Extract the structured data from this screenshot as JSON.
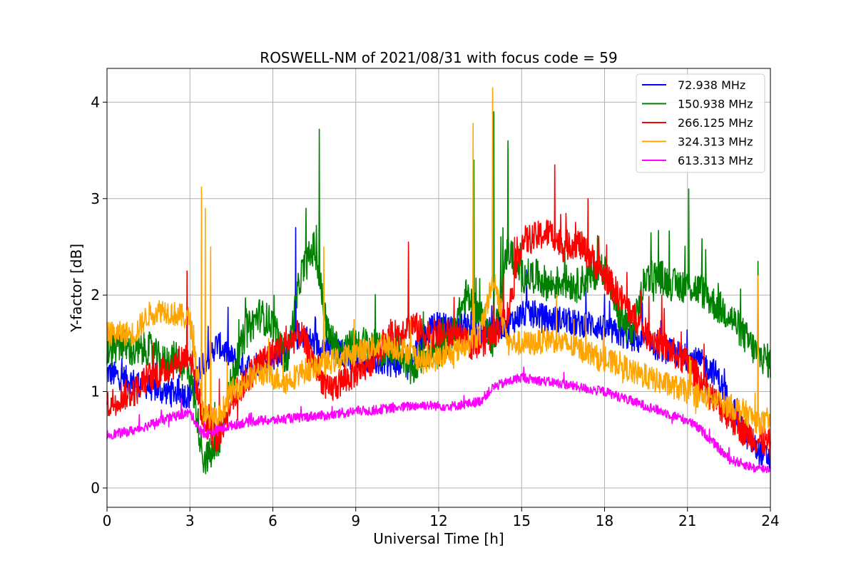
{
  "chart_data": {
    "type": "line",
    "title": "ROSWELL-NM of 2021/08/31 with focus code = 59",
    "xlabel": "Universal Time [h]",
    "ylabel": "Y-factor [dB]",
    "xlim": [
      0,
      24
    ],
    "ylim": [
      -0.2,
      4.35
    ],
    "xticks": [
      0,
      3,
      6,
      9,
      12,
      15,
      18,
      21,
      24
    ],
    "yticks": [
      0,
      1,
      2,
      3,
      4
    ],
    "grid": true,
    "legend_position": "top-right",
    "series": [
      {
        "name": " 72.938 MHz",
        "color": "#0000ff",
        "x": [
          0,
          0.5,
          1,
          1.5,
          2,
          2.5,
          3,
          3.5,
          4,
          4.5,
          5,
          5.5,
          6,
          6.5,
          7,
          7.5,
          8,
          8.5,
          9,
          9.5,
          10,
          10.5,
          11,
          11.5,
          12,
          12.5,
          13,
          13.5,
          14,
          14.5,
          15,
          15.5,
          16,
          16.5,
          17,
          17.5,
          18,
          18.5,
          19,
          19.5,
          20,
          20.5,
          21,
          21.5,
          22,
          22.5,
          23,
          23.5,
          24
        ],
        "y": [
          1.2,
          1.15,
          1.1,
          1.05,
          1.0,
          1.0,
          0.95,
          1.3,
          1.5,
          1.35,
          1.25,
          1.3,
          1.35,
          1.45,
          1.6,
          1.5,
          1.45,
          1.4,
          1.35,
          1.3,
          1.3,
          1.28,
          1.35,
          1.6,
          1.7,
          1.65,
          1.7,
          1.6,
          1.65,
          1.7,
          1.8,
          1.8,
          1.75,
          1.75,
          1.7,
          1.7,
          1.65,
          1.6,
          1.55,
          1.5,
          1.45,
          1.4,
          1.35,
          1.3,
          1.2,
          0.9,
          0.6,
          0.4,
          0.3
        ],
        "noise": 0.14
      },
      {
        "name": "150.938 MHz",
        "color": "#008000",
        "x": [
          0,
          0.5,
          1,
          1.5,
          2,
          2.5,
          3,
          3.5,
          4,
          4.5,
          5,
          5.5,
          6,
          6.5,
          7,
          7.5,
          8,
          8.5,
          9,
          9.5,
          10,
          10.5,
          11,
          11.5,
          12,
          12.5,
          13,
          13.5,
          14,
          14.5,
          15,
          15.5,
          16,
          16.5,
          17,
          17.5,
          18,
          18.5,
          19,
          19.5,
          20,
          20.5,
          21,
          21.5,
          22,
          22.5,
          23,
          23.5,
          24
        ],
        "y": [
          1.4,
          1.5,
          1.4,
          1.45,
          1.3,
          1.35,
          1.2,
          0.3,
          0.4,
          1.1,
          1.6,
          1.8,
          1.7,
          1.3,
          2.2,
          2.5,
          1.6,
          1.4,
          1.5,
          1.5,
          1.4,
          1.5,
          1.2,
          1.4,
          1.4,
          1.6,
          2.0,
          1.8,
          1.5,
          2.5,
          2.2,
          2.2,
          2.1,
          2.15,
          2.1,
          2.2,
          2.3,
          1.8,
          1.6,
          2.2,
          2.2,
          2.1,
          2.1,
          2.05,
          1.9,
          1.8,
          1.6,
          1.4,
          1.3
        ],
        "noise": 0.18
      },
      {
        "name": "266.125 MHz",
        "color": "#ff0000",
        "x": [
          0,
          0.5,
          1,
          1.5,
          2,
          2.5,
          3,
          3.5,
          4,
          4.5,
          5,
          5.5,
          6,
          6.5,
          7,
          7.5,
          8,
          8.5,
          9,
          9.5,
          10,
          10.5,
          11,
          11.5,
          12,
          12.5,
          13,
          13.5,
          14,
          14.5,
          15,
          15.5,
          16,
          16.5,
          17,
          17.5,
          18,
          18.5,
          19,
          19.5,
          20,
          20.5,
          21,
          21.5,
          22,
          22.5,
          23,
          23.5,
          24
        ],
        "y": [
          0.85,
          0.95,
          1.0,
          1.15,
          1.2,
          1.3,
          1.4,
          0.7,
          0.5,
          0.9,
          1.1,
          1.3,
          1.4,
          1.5,
          1.6,
          1.3,
          1.0,
          1.1,
          1.2,
          1.3,
          1.5,
          1.6,
          1.7,
          1.6,
          1.6,
          1.6,
          1.5,
          1.5,
          1.6,
          1.8,
          2.55,
          2.6,
          2.65,
          2.5,
          2.55,
          2.4,
          2.2,
          2.0,
          1.8,
          1.6,
          1.5,
          1.4,
          1.3,
          1.1,
          0.9,
          0.75,
          0.6,
          0.5,
          0.45
        ],
        "noise": 0.16
      },
      {
        "name": "324.313 MHz",
        "color": "#ffa500",
        "x": [
          0,
          0.5,
          1,
          1.5,
          2,
          2.5,
          3,
          3.5,
          4,
          4.5,
          5,
          5.5,
          6,
          6.5,
          7,
          7.5,
          8,
          8.5,
          9,
          9.5,
          10,
          10.5,
          11,
          11.5,
          12,
          12.5,
          13,
          13.5,
          14,
          14.5,
          15,
          15.5,
          16,
          16.5,
          17,
          17.5,
          18,
          18.5,
          19,
          19.5,
          20,
          20.5,
          21,
          21.5,
          22,
          22.5,
          23,
          23.5,
          24
        ],
        "y": [
          1.6,
          1.6,
          1.6,
          1.8,
          1.85,
          1.8,
          1.75,
          0.75,
          0.7,
          1.0,
          1.1,
          1.2,
          1.15,
          1.1,
          1.2,
          1.25,
          1.3,
          1.35,
          1.4,
          1.45,
          1.5,
          1.45,
          1.4,
          1.3,
          1.35,
          1.4,
          1.5,
          1.6,
          2.2,
          1.5,
          1.5,
          1.5,
          1.55,
          1.5,
          1.45,
          1.4,
          1.3,
          1.3,
          1.2,
          1.15,
          1.1,
          1.05,
          1.0,
          0.95,
          0.9,
          0.85,
          0.8,
          0.7,
          0.65
        ],
        "noise": 0.13
      },
      {
        "name": "613.313 MHz",
        "color": "#ff00ff",
        "x": [
          0,
          0.5,
          1,
          1.5,
          2,
          2.5,
          3,
          3.5,
          4,
          4.5,
          5,
          5.5,
          6,
          6.5,
          7,
          7.5,
          8,
          8.5,
          9,
          9.5,
          10,
          10.5,
          11,
          11.5,
          12,
          12.5,
          13,
          13.5,
          14,
          14.5,
          15,
          15.5,
          16,
          16.5,
          17,
          17.5,
          18,
          18.5,
          19,
          19.5,
          20,
          20.5,
          21,
          21.5,
          22,
          22.5,
          23,
          23.5,
          24
        ],
        "y": [
          0.55,
          0.57,
          0.6,
          0.65,
          0.7,
          0.75,
          0.78,
          0.55,
          0.6,
          0.65,
          0.68,
          0.7,
          0.7,
          0.72,
          0.73,
          0.75,
          0.75,
          0.77,
          0.8,
          0.8,
          0.82,
          0.83,
          0.85,
          0.86,
          0.85,
          0.85,
          0.87,
          0.9,
          1.05,
          1.1,
          1.15,
          1.12,
          1.1,
          1.08,
          1.05,
          1.02,
          1.0,
          0.95,
          0.9,
          0.85,
          0.8,
          0.75,
          0.7,
          0.6,
          0.45,
          0.3,
          0.25,
          0.2,
          0.2
        ],
        "noise": 0.05
      }
    ],
    "spikes": [
      {
        "series": 3,
        "x": 3.42,
        "y": 3.12
      },
      {
        "series": 3,
        "x": 3.55,
        "y": 2.9
      },
      {
        "series": 3,
        "x": 3.75,
        "y": 2.5
      },
      {
        "series": 1,
        "x": 7.68,
        "y": 3.72
      },
      {
        "series": 1,
        "x": 7.2,
        "y": 2.9
      },
      {
        "series": 0,
        "x": 6.82,
        "y": 2.7
      },
      {
        "series": 3,
        "x": 7.85,
        "y": 2.5
      },
      {
        "series": 2,
        "x": 2.9,
        "y": 2.25
      },
      {
        "series": 2,
        "x": 10.9,
        "y": 2.55
      },
      {
        "series": 3,
        "x": 13.25,
        "y": 3.78
      },
      {
        "series": 1,
        "x": 13.28,
        "y": 3.4
      },
      {
        "series": 3,
        "x": 13.95,
        "y": 4.15
      },
      {
        "series": 1,
        "x": 14.0,
        "y": 3.9
      },
      {
        "series": 1,
        "x": 14.5,
        "y": 3.6
      },
      {
        "series": 2,
        "x": 16.2,
        "y": 3.35
      },
      {
        "series": 2,
        "x": 17.4,
        "y": 3.0
      },
      {
        "series": 1,
        "x": 21.05,
        "y": 3.1
      },
      {
        "series": 1,
        "x": 23.55,
        "y": 2.35
      },
      {
        "series": 3,
        "x": 23.55,
        "y": 2.2
      }
    ]
  }
}
